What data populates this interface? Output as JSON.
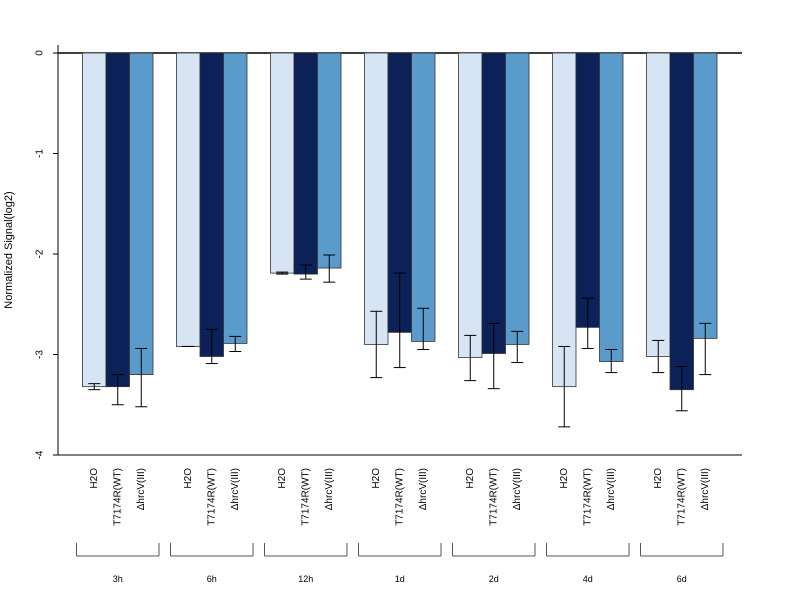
{
  "chart_data": {
    "type": "bar",
    "ylabel": "Normalized Signal(log2)",
    "ylim": [
      -4,
      0
    ],
    "yticks": [
      0,
      -1,
      -2,
      -3,
      -4
    ],
    "bar_labels": [
      "H2O",
      "T7174R(WT)",
      "ΔhrcV(III)"
    ],
    "groups": [
      "3h",
      "6h",
      "12h",
      "1d",
      "2d",
      "4d",
      "6d"
    ],
    "series": [
      {
        "name": "H2O",
        "color": "#d6e4f3",
        "values": [
          -3.32,
          -2.92,
          -2.19,
          -2.9,
          -3.03,
          -3.32,
          -3.02
        ],
        "err_low": [
          -3.35,
          -2.92,
          -2.2,
          -3.23,
          -3.26,
          -3.72,
          -3.18
        ],
        "err_high": [
          -3.29,
          -2.92,
          -2.18,
          -2.57,
          -2.81,
          -2.92,
          -2.86
        ]
      },
      {
        "name": "T7174R(WT)",
        "color": "#0b2157",
        "values": [
          -3.32,
          -3.02,
          -2.2,
          -2.78,
          -2.99,
          -2.73,
          -3.35
        ],
        "err_low": [
          -3.5,
          -3.09,
          -2.25,
          -3.13,
          -3.34,
          -2.94,
          -3.56
        ],
        "err_high": [
          -3.2,
          -2.75,
          -2.11,
          -2.19,
          -2.69,
          -2.44,
          -3.12
        ]
      },
      {
        "name": "ΔhrcV(III)",
        "color": "#5a9bcb",
        "values": [
          -3.2,
          -2.89,
          -2.14,
          -2.87,
          -2.9,
          -3.07,
          -2.84
        ],
        "err_low": [
          -3.52,
          -2.97,
          -2.28,
          -2.95,
          -3.08,
          -3.18,
          -3.2
        ],
        "err_high": [
          -2.94,
          -2.82,
          -2.01,
          -2.54,
          -2.77,
          -2.95,
          -2.69
        ]
      }
    ]
  }
}
